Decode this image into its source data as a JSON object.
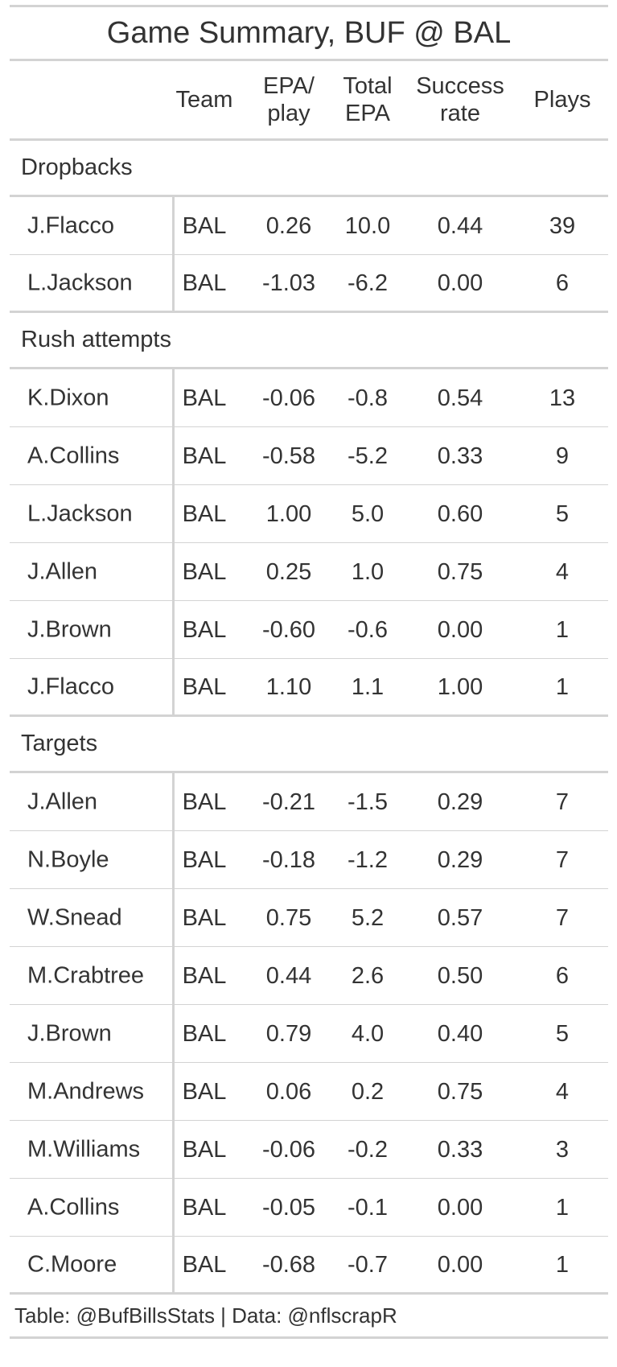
{
  "title": "Game Summary, BUF @ BAL",
  "columns": {
    "team": "Team",
    "epa_play": "EPA/\nplay",
    "total_epa": "Total\nEPA",
    "success_rate": "Success\nrate",
    "plays": "Plays"
  },
  "groups": [
    {
      "label": "Dropbacks",
      "rows": [
        {
          "player": "J.Flacco",
          "team": "BAL",
          "epa_play": "0.26",
          "total_epa": "10.0",
          "success_rate": "0.44",
          "plays": "39"
        },
        {
          "player": "L.Jackson",
          "team": "BAL",
          "epa_play": "-1.03",
          "total_epa": "-6.2",
          "success_rate": "0.00",
          "plays": "6"
        }
      ]
    },
    {
      "label": "Rush attempts",
      "rows": [
        {
          "player": "K.Dixon",
          "team": "BAL",
          "epa_play": "-0.06",
          "total_epa": "-0.8",
          "success_rate": "0.54",
          "plays": "13"
        },
        {
          "player": "A.Collins",
          "team": "BAL",
          "epa_play": "-0.58",
          "total_epa": "-5.2",
          "success_rate": "0.33",
          "plays": "9"
        },
        {
          "player": "L.Jackson",
          "team": "BAL",
          "epa_play": "1.00",
          "total_epa": "5.0",
          "success_rate": "0.60",
          "plays": "5"
        },
        {
          "player": "J.Allen",
          "team": "BAL",
          "epa_play": "0.25",
          "total_epa": "1.0",
          "success_rate": "0.75",
          "plays": "4"
        },
        {
          "player": "J.Brown",
          "team": "BAL",
          "epa_play": "-0.60",
          "total_epa": "-0.6",
          "success_rate": "0.00",
          "plays": "1"
        },
        {
          "player": "J.Flacco",
          "team": "BAL",
          "epa_play": "1.10",
          "total_epa": "1.1",
          "success_rate": "1.00",
          "plays": "1"
        }
      ]
    },
    {
      "label": "Targets",
      "rows": [
        {
          "player": "J.Allen",
          "team": "BAL",
          "epa_play": "-0.21",
          "total_epa": "-1.5",
          "success_rate": "0.29",
          "plays": "7"
        },
        {
          "player": "N.Boyle",
          "team": "BAL",
          "epa_play": "-0.18",
          "total_epa": "-1.2",
          "success_rate": "0.29",
          "plays": "7"
        },
        {
          "player": "W.Snead",
          "team": "BAL",
          "epa_play": "0.75",
          "total_epa": "5.2",
          "success_rate": "0.57",
          "plays": "7"
        },
        {
          "player": "M.Crabtree",
          "team": "BAL",
          "epa_play": "0.44",
          "total_epa": "2.6",
          "success_rate": "0.50",
          "plays": "6"
        },
        {
          "player": "J.Brown",
          "team": "BAL",
          "epa_play": "0.79",
          "total_epa": "4.0",
          "success_rate": "0.40",
          "plays": "5"
        },
        {
          "player": "M.Andrews",
          "team": "BAL",
          "epa_play": "0.06",
          "total_epa": "0.2",
          "success_rate": "0.75",
          "plays": "4"
        },
        {
          "player": "M.Williams",
          "team": "BAL",
          "epa_play": "-0.06",
          "total_epa": "-0.2",
          "success_rate": "0.33",
          "plays": "3"
        },
        {
          "player": "A.Collins",
          "team": "BAL",
          "epa_play": "-0.05",
          "total_epa": "-0.1",
          "success_rate": "0.00",
          "plays": "1"
        },
        {
          "player": "C.Moore",
          "team": "BAL",
          "epa_play": "-0.68",
          "total_epa": "-0.7",
          "success_rate": "0.00",
          "plays": "1"
        }
      ]
    }
  ],
  "footer": "Table: @BufBillsStats | Data: @nflscrapR",
  "colors": {
    "rule": "#d3d3d3",
    "text": "#333333"
  }
}
